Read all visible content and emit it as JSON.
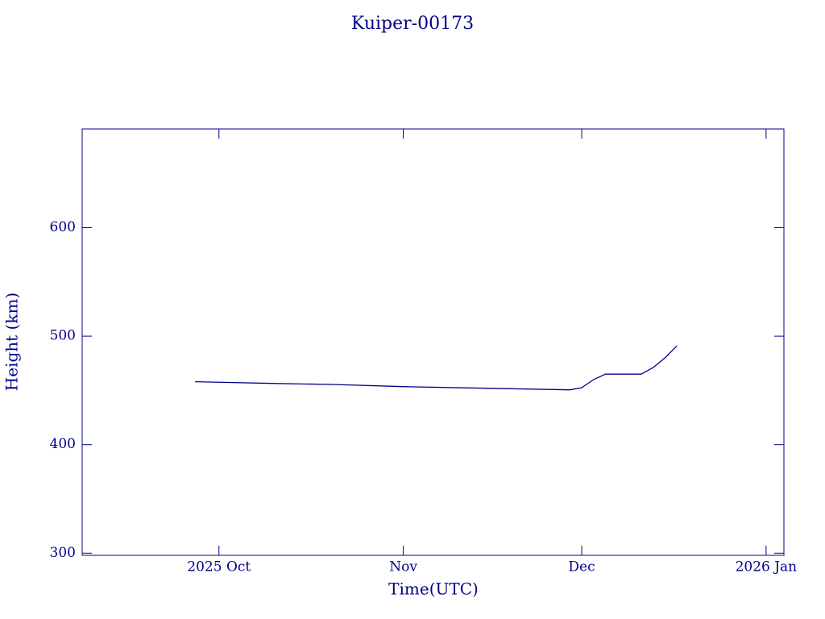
{
  "chart_data": {
    "type": "line",
    "title": "Kuiper-00173",
    "x_label": "Time(UTC)",
    "y_label": "Height (km)",
    "x": [
      "2025-09-27",
      "2025-10-10",
      "2025-10-20",
      "2025-11-01",
      "2025-11-15",
      "2025-11-29",
      "2025-12-01",
      "2025-12-03",
      "2025-12-05",
      "2025-12-08",
      "2025-12-11",
      "2025-12-13",
      "2025-12-15",
      "2025-12-17"
    ],
    "series": [
      {
        "name": "Height",
        "color": "#00008b",
        "values": [
          458,
          456.5,
          455.5,
          453.5,
          452,
          450.5,
          452.5,
          460,
          465,
          465,
          465,
          471,
          480,
          491
        ]
      }
    ],
    "xlim": [
      "2025-09-08",
      "2026-01-04"
    ],
    "xticks": [
      {
        "value": "2025-10-01",
        "label": "2025 Oct"
      },
      {
        "value": "2025-11-01",
        "label": "Nov"
      },
      {
        "value": "2025-12-01",
        "label": "Dec"
      },
      {
        "value": "2026-01-01",
        "label": "2026 Jan"
      }
    ],
    "ylim": [
      298,
      691
    ],
    "yticks": [
      300,
      400,
      500,
      600
    ],
    "grid": false
  }
}
